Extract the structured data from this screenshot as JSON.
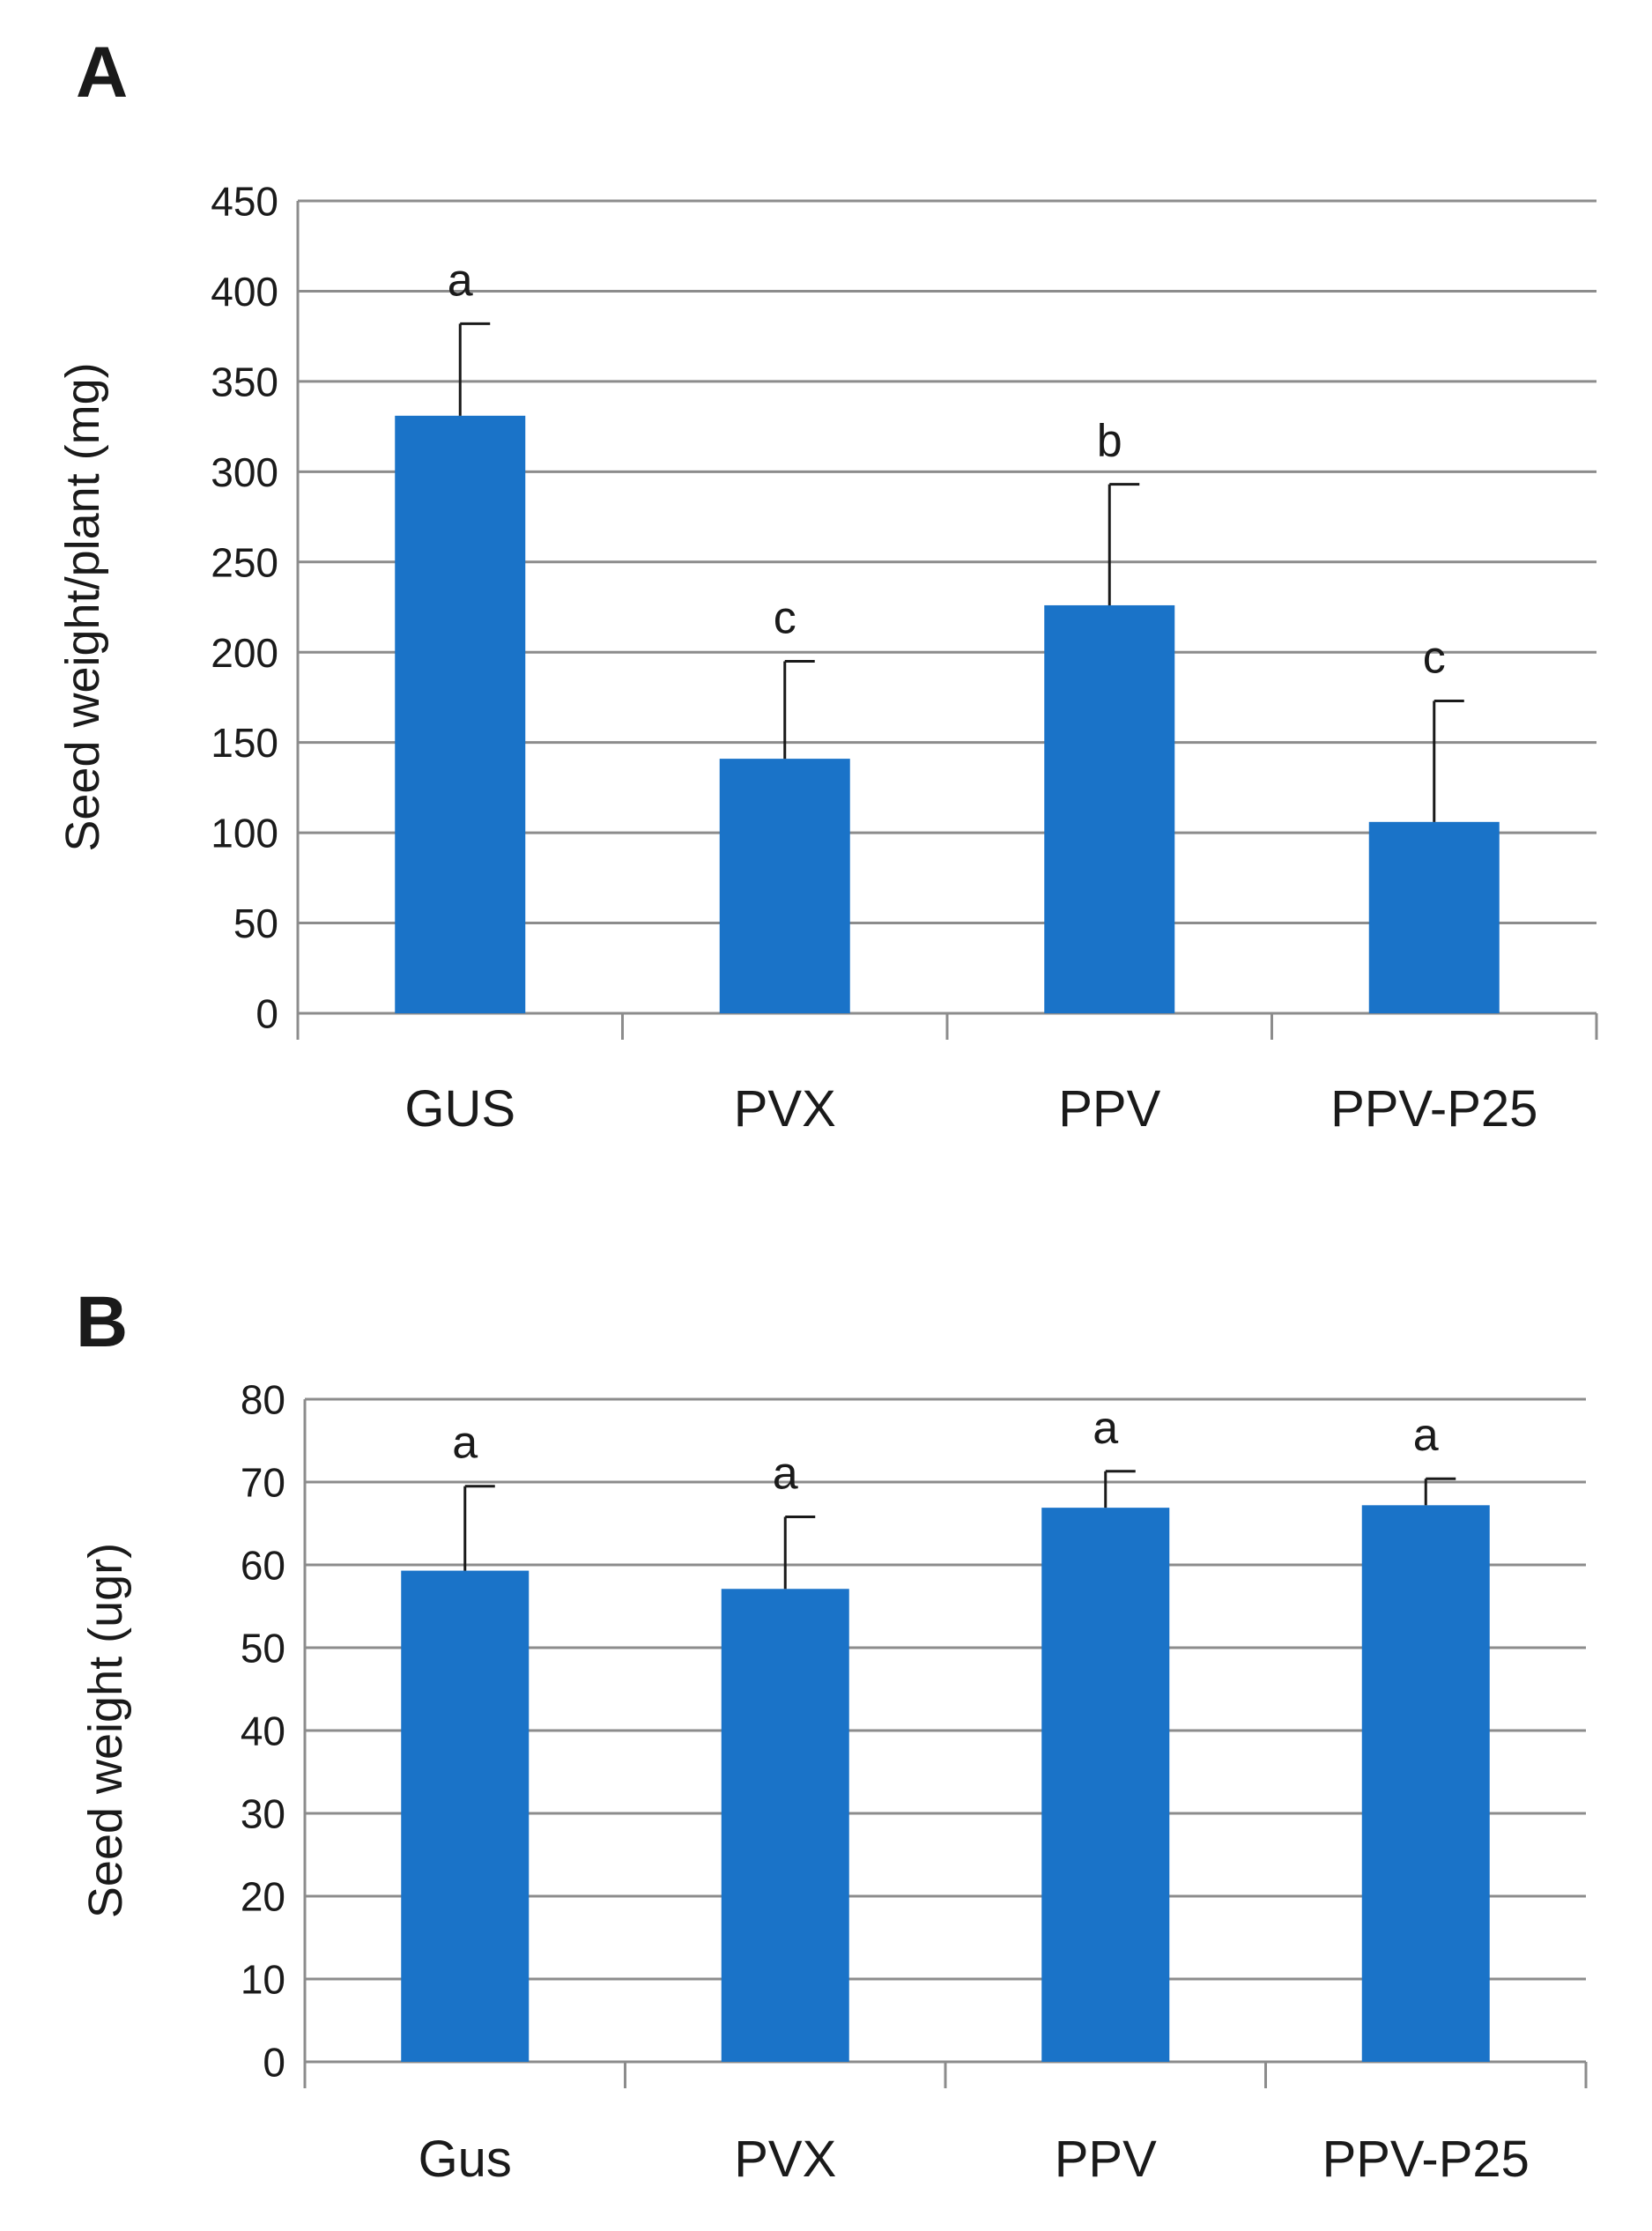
{
  "colors": {
    "bar": "#1a73c8",
    "grid": "#8c8c8c",
    "axis": "#8c8c8c",
    "error_bar": "#1a1a1a",
    "text": "#1a1a1a"
  },
  "chart_data": [
    {
      "panel_label": "A",
      "type": "bar",
      "categories": [
        "GUS",
        "PVX",
        "PPV",
        "PPV-P25"
      ],
      "values": [
        331,
        141,
        226,
        106
      ],
      "error_upper": [
        382,
        195,
        293,
        173
      ],
      "significance_letters": [
        "a",
        "c",
        "b",
        "c"
      ],
      "ylabel": "Seed weight/plant (mg)",
      "ylim": [
        0,
        450
      ],
      "yticks": [
        0,
        50,
        100,
        150,
        200,
        250,
        300,
        350,
        400,
        450
      ],
      "grid": true,
      "legend": "none"
    },
    {
      "panel_label": "B",
      "type": "bar",
      "categories": [
        "Gus",
        "PVX",
        "PPV",
        "PPV-P25"
      ],
      "values": [
        59.3,
        57.1,
        66.9,
        67.2
      ],
      "error_upper": [
        69.5,
        65.8,
        71.3,
        70.4
      ],
      "significance_letters": [
        "a",
        "a",
        "a",
        "a"
      ],
      "ylabel": "Seed weight (ugr)",
      "ylim": [
        0,
        80
      ],
      "yticks": [
        0,
        10,
        20,
        30,
        40,
        50,
        60,
        70,
        80
      ],
      "grid": true,
      "legend": "none"
    }
  ]
}
